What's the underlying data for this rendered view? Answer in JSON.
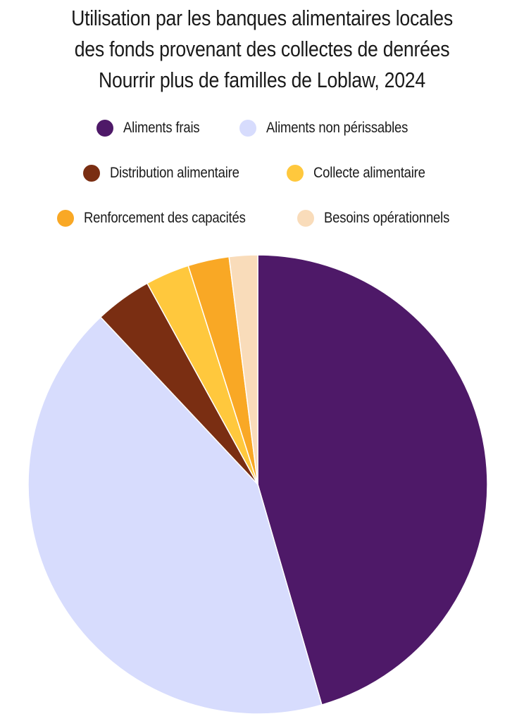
{
  "chart_data": {
    "type": "pie",
    "title_lines": [
      "Utilisation par les banques alimentaires locales",
      "des fonds provenant des collectes de denrées",
      "Nourrir plus de familles de Loblaw, 2024"
    ],
    "legend_placement": "top",
    "slices": [
      {
        "label": "Aliments frais",
        "value": 45.5,
        "color": "#4E1968"
      },
      {
        "label": "Aliments non périssables",
        "value": 42.5,
        "color": "#D7DCFD"
      },
      {
        "label": "Distribution alimentaire",
        "value": 4.0,
        "color": "#7A2E12"
      },
      {
        "label": "Collecte alimentaire",
        "value": 3.1,
        "color": "#FFC83D"
      },
      {
        "label": "Renforcement des capacités",
        "value": 2.9,
        "color": "#F9A825"
      },
      {
        "label": "Besoins opérationnels",
        "value": 2.0,
        "color": "#F9DCBA"
      }
    ]
  }
}
